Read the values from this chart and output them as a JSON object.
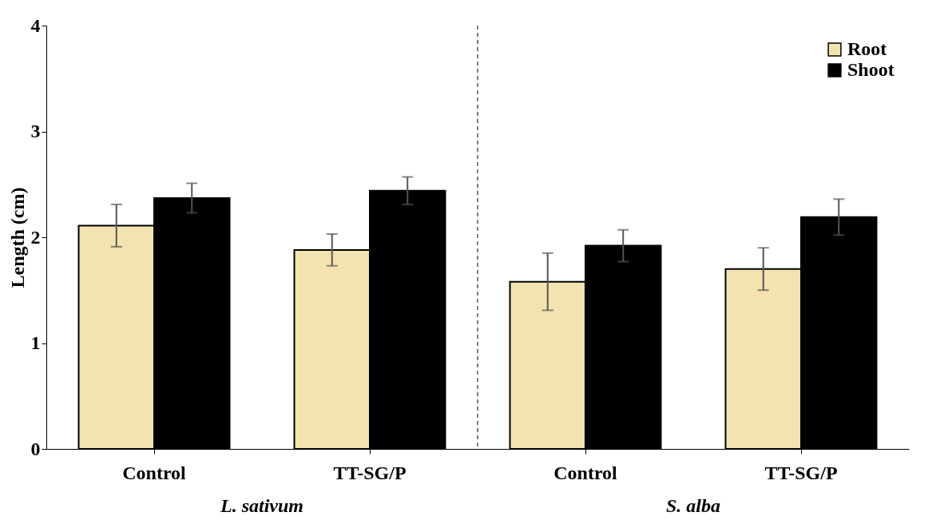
{
  "chart_data": {
    "type": "bar",
    "ylabel": "Length (cm)",
    "categories": [
      "Control",
      "TT-SG/P",
      "Control",
      "TT-SG/P"
    ],
    "series": [
      {
        "name": "Root",
        "color": "#f3e3b0",
        "values": [
          2.11,
          1.88,
          1.58,
          1.7
        ],
        "errors": [
          0.2,
          0.15,
          0.27,
          0.2
        ]
      },
      {
        "name": "Shoot",
        "color": "#000000",
        "values": [
          2.37,
          2.44,
          1.92,
          2.19
        ],
        "errors": [
          0.14,
          0.13,
          0.15,
          0.17
        ]
      }
    ],
    "ylim": [
      0,
      4
    ],
    "yticks": [
      0,
      1,
      2,
      3,
      4
    ],
    "grid": false,
    "legend": "top right",
    "annotations": [
      "L. sativum",
      "S. alba"
    ]
  }
}
